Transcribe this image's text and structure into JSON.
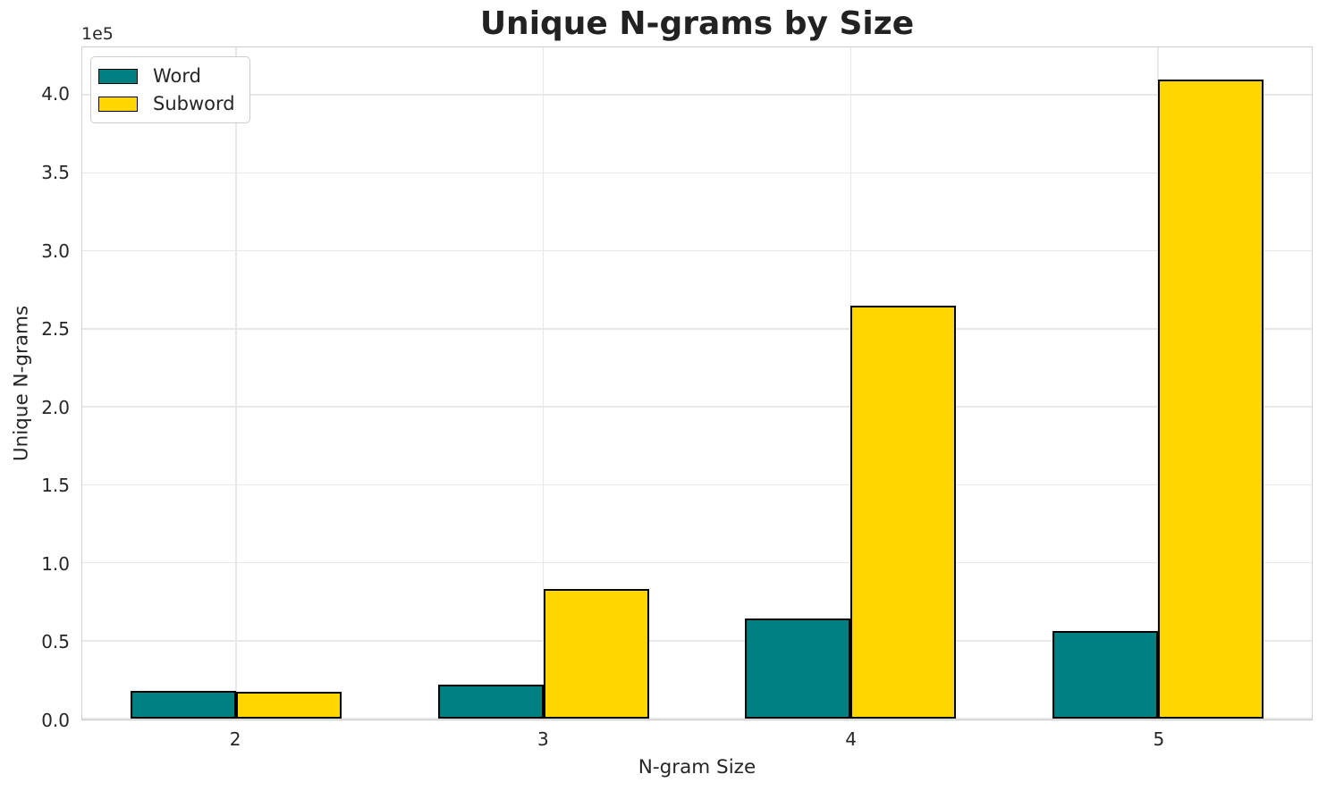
{
  "chart_data": {
    "type": "bar",
    "title": "Unique N-grams by Size",
    "xlabel": "N-gram Size",
    "ylabel": "Unique N-grams",
    "y_offset_text": "1e5",
    "categories": [
      "2",
      "3",
      "4",
      "5"
    ],
    "series": [
      {
        "name": "Word",
        "color": "#008080",
        "values": [
          18000,
          22000,
          64000,
          56000
        ]
      },
      {
        "name": "Subword",
        "color": "#FFD600",
        "values": [
          17000,
          83000,
          265000,
          410000
        ]
      }
    ],
    "ylim": [
      0,
      430500
    ],
    "yticks": [
      0,
      50000,
      100000,
      150000,
      200000,
      250000,
      300000,
      350000,
      400000
    ],
    "ytick_labels": [
      "0.0",
      "0.5",
      "1.0",
      "1.5",
      "2.0",
      "2.5",
      "3.0",
      "3.5",
      "4.0"
    ],
    "grid": true,
    "legend_position": "upper left",
    "bar_edge_color": "#000000",
    "bar_width_fraction": 0.35
  },
  "legend": {
    "items": [
      {
        "label": "Word",
        "color": "#008080"
      },
      {
        "label": "Subword",
        "color": "#FFD600"
      }
    ]
  }
}
